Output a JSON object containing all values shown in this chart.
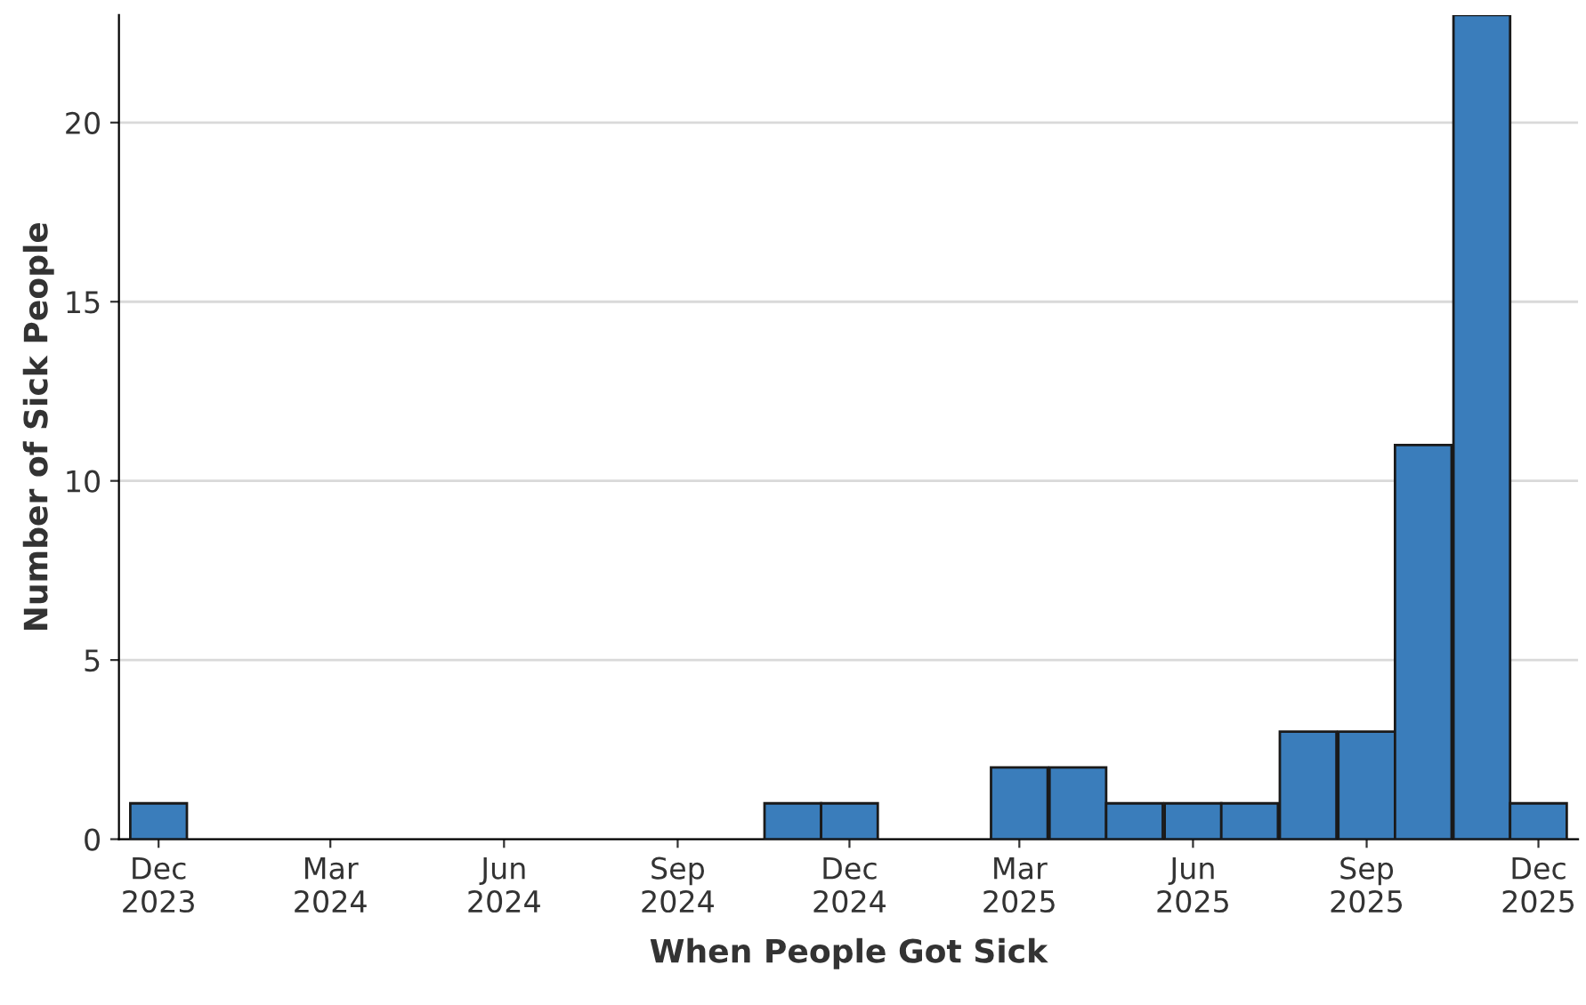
{
  "chart_data": {
    "type": "bar",
    "xlabel": "When People Got Sick",
    "ylabel": "Number of Sick People",
    "x": [
      "2023-12",
      "2024-01",
      "2024-02",
      "2024-03",
      "2024-04",
      "2024-05",
      "2024-06",
      "2024-07",
      "2024-08",
      "2024-09",
      "2024-10",
      "2024-11",
      "2024-12",
      "2025-01",
      "2025-02",
      "2025-03",
      "2025-04",
      "2025-05",
      "2025-06",
      "2025-07",
      "2025-08",
      "2025-09",
      "2025-10",
      "2025-11",
      "2025-12"
    ],
    "values": [
      1,
      0,
      0,
      0,
      0,
      0,
      0,
      0,
      0,
      0,
      0,
      1,
      1,
      0,
      0,
      2,
      2,
      1,
      1,
      1,
      3,
      3,
      11,
      23,
      1
    ],
    "color": "#3a7dbb",
    "xlim": [
      "2023-11-10",
      "2025-12-22"
    ],
    "xticks": [
      {
        "value": "2023-12",
        "label": "Dec\n2023"
      },
      {
        "value": "2024-03",
        "label": "Mar\n2024"
      },
      {
        "value": "2024-06",
        "label": "Jun\n2024"
      },
      {
        "value": "2024-09",
        "label": "Sep\n2024"
      },
      {
        "value": "2024-12",
        "label": "Dec\n2024"
      },
      {
        "value": "2025-03",
        "label": "Mar\n2025"
      },
      {
        "value": "2025-06",
        "label": "Jun\n2025"
      },
      {
        "value": "2025-09",
        "label": "Sep\n2025"
      },
      {
        "value": "2025-12",
        "label": "Dec\n2025"
      }
    ],
    "ylim": [
      0,
      23
    ],
    "yticks": [
      0,
      5,
      10,
      15,
      20
    ],
    "grid": "y",
    "legend": false
  }
}
